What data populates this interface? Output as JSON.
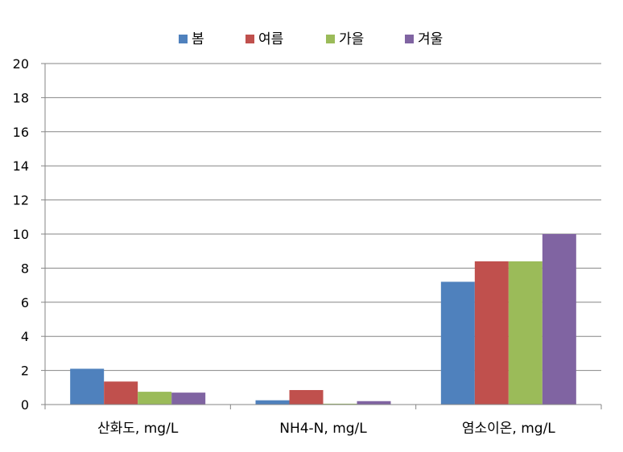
{
  "chart_data": {
    "type": "bar",
    "categories": [
      "산화도, mg/L",
      "NH4-N, mg/L",
      "염소이온, mg/L"
    ],
    "series": [
      {
        "name": "봄",
        "color": "#4F81BD",
        "values": [
          2.1,
          0.25,
          7.2
        ]
      },
      {
        "name": "여름",
        "color": "#C0504D",
        "values": [
          1.35,
          0.85,
          8.4
        ]
      },
      {
        "name": "가을",
        "color": "#9BBB59",
        "values": [
          0.75,
          0.05,
          8.4
        ]
      },
      {
        "name": "겨울",
        "color": "#8064A2",
        "values": [
          0.7,
          0.2,
          10.0
        ]
      }
    ],
    "ylim": [
      0,
      20
    ],
    "yticks": [
      0,
      2,
      4,
      6,
      8,
      10,
      12,
      14,
      16,
      18,
      20
    ],
    "grid": true,
    "legend_position": "top"
  }
}
